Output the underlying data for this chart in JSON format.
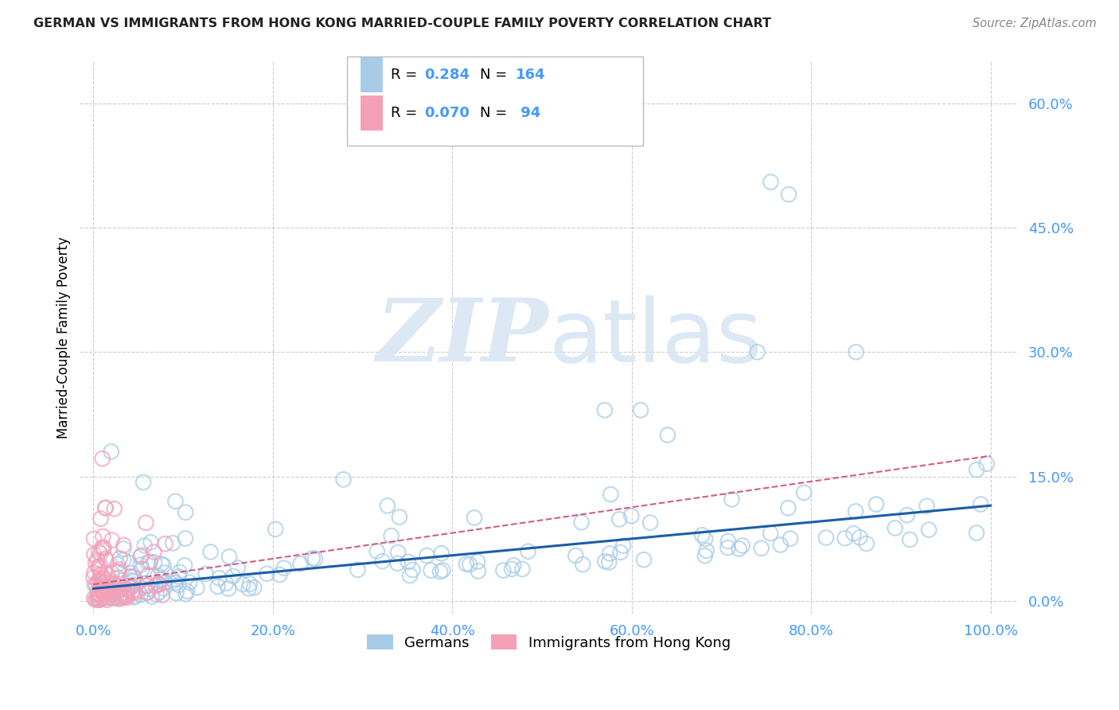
{
  "title": "GERMAN VS IMMIGRANTS FROM HONG KONG MARRIED-COUPLE FAMILY POVERTY CORRELATION CHART",
  "source": "Source: ZipAtlas.com",
  "xlabel_ticks": [
    "0.0%",
    "20.0%",
    "40.0%",
    "60.0%",
    "80.0%",
    "100.0%"
  ],
  "xlabel_vals": [
    0,
    20,
    40,
    60,
    80,
    100
  ],
  "ylabel_ticks": [
    "0.0%",
    "15.0%",
    "30.0%",
    "45.0%",
    "60.0%"
  ],
  "ylabel_vals": [
    0,
    15,
    30,
    45,
    60
  ],
  "ylabel_label": "Married-Couple Family Poverty",
  "legend_label1": "Germans",
  "legend_label2": "Immigrants from Hong Kong",
  "R1": "0.284",
  "N1": "164",
  "R2": "0.070",
  "N2": " 94",
  "color_blue": "#a8cce8",
  "color_pink": "#f4a0b8",
  "color_blue_line": "#1a5ea8",
  "color_pink_line": "#d06080",
  "watermark_color": "#dde8f5",
  "background": "#ffffff",
  "grid_color": "#cccccc",
  "tick_color": "#4499ff",
  "title_color": "#222222",
  "source_color": "#888888"
}
